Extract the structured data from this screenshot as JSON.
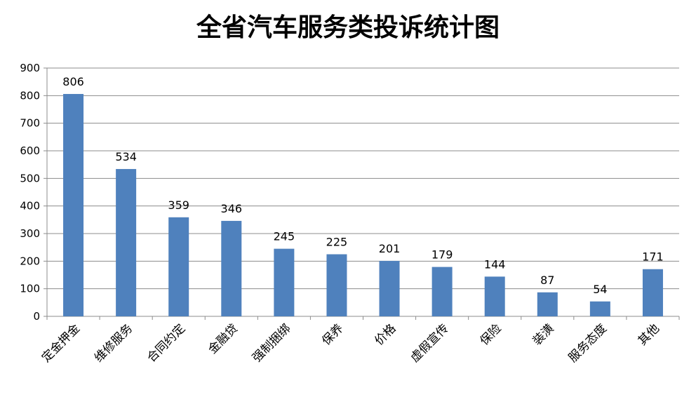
{
  "chart_data": {
    "type": "bar",
    "title": "全省汽车服务类投诉统计图",
    "categories": [
      "定金押金",
      "维修服务",
      "合同约定",
      "金融贷",
      "强制捆绑",
      "保养",
      "价格",
      "虚假宣传",
      "保险",
      "装潢",
      "服务态度",
      "其他"
    ],
    "values": [
      806,
      534,
      359,
      346,
      245,
      225,
      201,
      179,
      144,
      87,
      54,
      171
    ],
    "yticks": [
      0,
      100,
      200,
      300,
      400,
      500,
      600,
      700,
      800,
      900
    ],
    "ylim": [
      0,
      900
    ],
    "xlabel": "",
    "ylabel": "",
    "grid": true,
    "legend": "none",
    "bar_color": "#4F81BD"
  }
}
